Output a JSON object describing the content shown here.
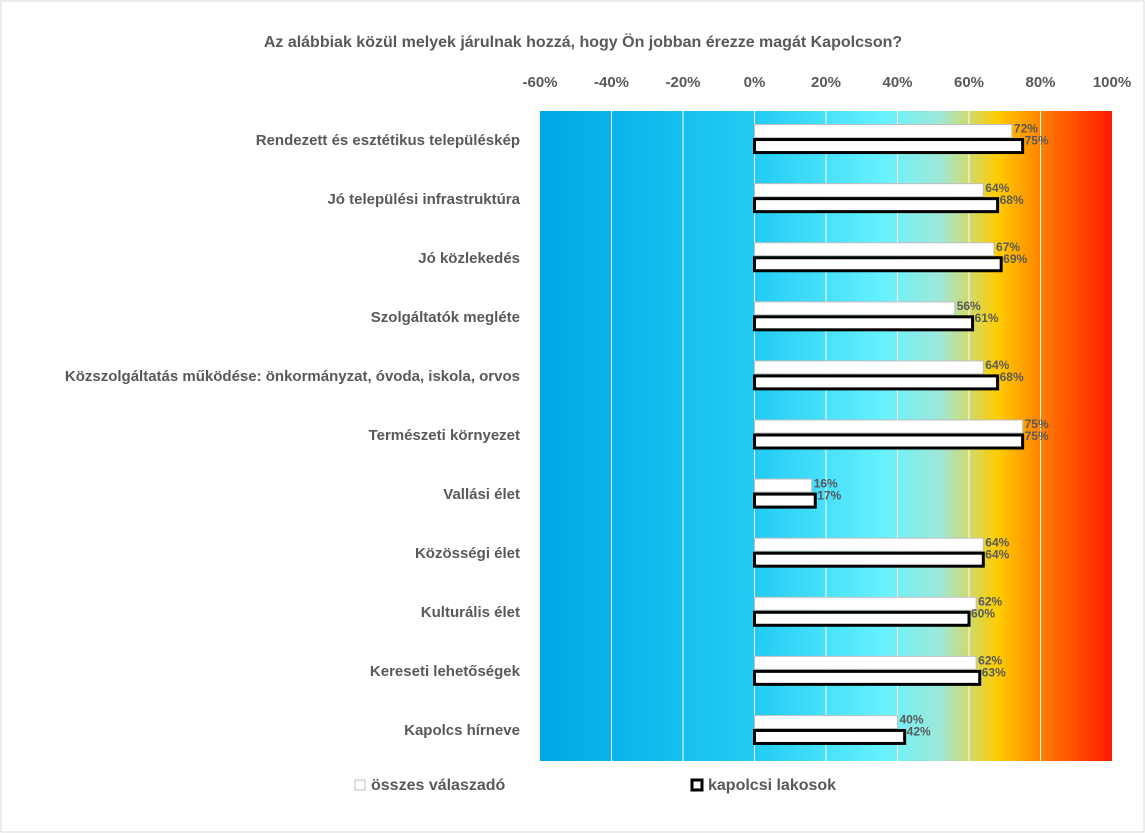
{
  "chart_data": {
    "type": "bar",
    "orientation": "horizontal",
    "title": "Az alábbiak közül melyek járulnak hozzá, hogy Ön jobban érezze magát Kapolcson?",
    "categories": [
      "Rendezett és esztétikus településkép",
      "Jó települési infrastruktúra",
      "Jó közlekedés",
      "Szolgáltatók megléte",
      "Közszolgáltatás működése: önkormányzat, óvoda, iskola, orvos",
      "Természeti környezet",
      "Vallási élet",
      "Közösségi élet",
      "Kulturális élet",
      "Kereseti lehetőségek",
      "Kapolcs hírneve"
    ],
    "series": [
      {
        "name": "összes válaszadó",
        "color": "#ffffff",
        "edge": "#bfbfbf",
        "values": [
          72,
          64,
          67,
          56,
          64,
          75,
          16,
          64,
          62,
          62,
          40
        ],
        "value_labels": [
          "72%",
          "64%",
          "67%",
          "56%",
          "64%",
          "75%",
          "16%",
          "64%",
          "62%",
          "62%",
          "40%"
        ]
      },
      {
        "name": "kapolcsi lakosok",
        "color": "#ffffff",
        "edge": "#000000",
        "values": [
          75,
          68,
          69,
          61,
          68,
          75,
          17,
          64,
          60,
          63,
          42
        ],
        "value_labels": [
          "75%",
          "68%",
          "69%",
          "61%",
          "68%",
          "75%",
          "17%",
          "64%",
          "60%",
          "63%",
          "42%"
        ]
      }
    ],
    "xlim": [
      -60,
      100
    ],
    "xticks": [
      {
        "value": -60,
        "label": "-60%"
      },
      {
        "value": -40,
        "label": "-40%"
      },
      {
        "value": -20,
        "label": "-20%"
      },
      {
        "value": 0,
        "label": "0%"
      },
      {
        "value": 20,
        "label": "20%"
      },
      {
        "value": 40,
        "label": "40%"
      },
      {
        "value": 60,
        "label": "60%"
      },
      {
        "value": 80,
        "label": "80%"
      },
      {
        "value": 100,
        "label": "100%"
      }
    ],
    "grid": true,
    "legend": "bottom"
  }
}
